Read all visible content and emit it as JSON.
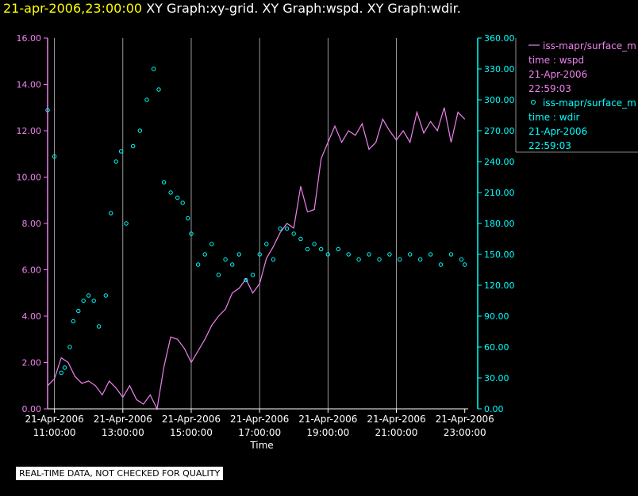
{
  "header": {
    "timestamp": "21-apr-2006,23:00:00",
    "graphs": "XY Graph:xy-grid.  XY Graph:wspd.  XY Graph:wdir."
  },
  "notice": "REAL-TIME DATA, NOT CHECKED FOR QUALITY",
  "colors": {
    "wspd": "#ee82ee",
    "wdir": "#00ffff",
    "grid": "#ffffff",
    "timestamp": "#ffff00"
  },
  "legend": [
    {
      "symbol": "line",
      "lines": [
        "iss-mapr/surface_m",
        "time : wspd",
        "21-Apr-2006",
        "22:59:03"
      ]
    },
    {
      "symbol": "circle",
      "lines": [
        "iss-mapr/surface_m",
        "time : wdir",
        "21-Apr-2006",
        "22:59:03"
      ]
    }
  ],
  "chart_data": {
    "type": "line",
    "xlabel": "Time",
    "x_range_hours": [
      10.8,
      23.1
    ],
    "x_ticks": [
      {
        "date": "21-Apr-2006",
        "time": "11:00:00",
        "hour": 11
      },
      {
        "date": "21-Apr-2006",
        "time": "13:00:00",
        "hour": 13
      },
      {
        "date": "21-Apr-2006",
        "time": "15:00:00",
        "hour": 15
      },
      {
        "date": "21-Apr-2006",
        "time": "17:00:00",
        "hour": 17
      },
      {
        "date": "21-Apr-2006",
        "time": "19:00:00",
        "hour": 19
      },
      {
        "date": "21-Apr-2006",
        "time": "21:00:00",
        "hour": 21
      },
      {
        "date": "21-Apr-2006",
        "time": "23:00:00",
        "hour": 23
      }
    ],
    "y_left": {
      "range": [
        0,
        16
      ],
      "ticks": [
        "0.00",
        "2.00",
        "4.00",
        "6.00",
        "8.00",
        "10.00",
        "12.00",
        "14.00",
        "16.00"
      ]
    },
    "y_right": {
      "range": [
        0,
        360
      ],
      "ticks": [
        "0.00",
        "30.00",
        "60.00",
        "90.00",
        "120.00",
        "150.00",
        "180.00",
        "210.00",
        "240.00",
        "270.00",
        "300.00",
        "330.00",
        "360.00"
      ]
    },
    "series": [
      {
        "axis": "left",
        "style": "line",
        "x": [
          10.8,
          11.0,
          11.2,
          11.4,
          11.6,
          11.8,
          12.0,
          12.2,
          12.4,
          12.6,
          12.8,
          13.0,
          13.2,
          13.4,
          13.6,
          13.8,
          14.0,
          14.2,
          14.4,
          14.6,
          14.8,
          15.0,
          15.2,
          15.4,
          15.6,
          15.8,
          16.0,
          16.2,
          16.4,
          16.6,
          16.8,
          17.0,
          17.2,
          17.4,
          17.6,
          17.8,
          18.0,
          18.2,
          18.4,
          18.6,
          18.8,
          19.0,
          19.2,
          19.4,
          19.6,
          19.8,
          20.0,
          20.2,
          20.4,
          20.6,
          20.8,
          21.0,
          21.2,
          21.4,
          21.6,
          21.8,
          22.0,
          22.2,
          22.4,
          22.6,
          22.8,
          23.0
        ],
        "y": [
          1.0,
          1.3,
          2.2,
          2.0,
          1.4,
          1.1,
          1.2,
          1.0,
          0.6,
          1.2,
          0.9,
          0.5,
          1.0,
          0.4,
          0.2,
          0.6,
          0.0,
          1.8,
          3.1,
          3.0,
          2.6,
          2.0,
          2.5,
          3.0,
          3.6,
          4.0,
          4.3,
          5.0,
          5.2,
          5.6,
          5.0,
          5.4,
          6.5,
          7.0,
          7.6,
          8.0,
          7.8,
          9.6,
          8.5,
          8.6,
          10.8,
          11.5,
          12.2,
          11.5,
          12.0,
          11.8,
          12.3,
          11.2,
          11.5,
          12.5,
          12.0,
          11.6,
          12.0,
          11.5,
          12.8,
          11.9,
          12.4,
          12.0,
          13.0,
          11.5,
          12.8,
          12.5
        ]
      },
      {
        "axis": "right",
        "style": "circle",
        "x": [
          10.8,
          11.0,
          11.2,
          11.3,
          11.45,
          11.55,
          11.7,
          11.85,
          12.0,
          12.15,
          12.3,
          12.5,
          12.65,
          12.8,
          12.95,
          13.1,
          13.3,
          13.5,
          13.7,
          13.9,
          14.05,
          14.2,
          14.4,
          14.6,
          14.75,
          14.9,
          15.0,
          15.2,
          15.4,
          15.6,
          15.8,
          16.0,
          16.2,
          16.4,
          16.6,
          16.8,
          17.0,
          17.2,
          17.4,
          17.6,
          17.8,
          18.0,
          18.2,
          18.4,
          18.6,
          18.8,
          19.0,
          19.3,
          19.6,
          19.9,
          20.2,
          20.5,
          20.8,
          21.1,
          21.4,
          21.7,
          22.0,
          22.3,
          22.6,
          22.9,
          23.0
        ],
        "y": [
          290,
          245,
          35,
          40,
          60,
          85,
          95,
          105,
          110,
          105,
          80,
          110,
          190,
          240,
          250,
          180,
          255,
          270,
          300,
          330,
          310,
          220,
          210,
          205,
          200,
          185,
          170,
          140,
          150,
          160,
          130,
          145,
          140,
          150,
          125,
          130,
          150,
          160,
          145,
          175,
          175,
          170,
          165,
          155,
          160,
          155,
          150,
          155,
          150,
          145,
          150,
          145,
          150,
          145,
          150,
          145,
          150,
          140,
          150,
          145,
          140
        ]
      }
    ]
  }
}
